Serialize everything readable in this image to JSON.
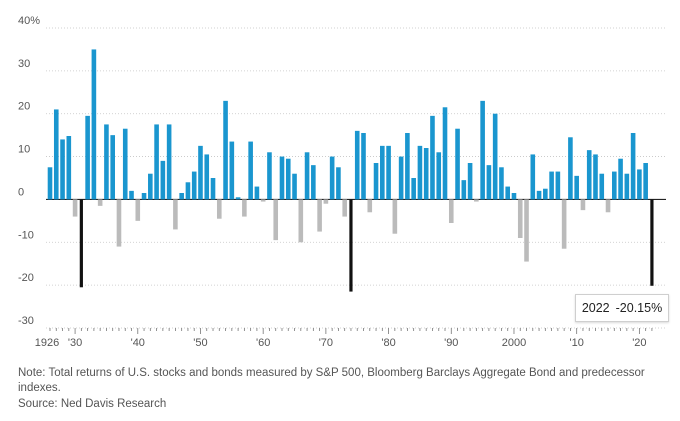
{
  "chart_data": {
    "type": "bar",
    "title": "",
    "xlabel": "",
    "ylabel": "",
    "ylim": [
      -30,
      40
    ],
    "y_ticks": [
      40,
      30,
      20,
      10,
      0,
      -10,
      -20,
      -30
    ],
    "y_tick_labels": [
      "40%",
      "30",
      "20",
      "10",
      "0",
      "-10",
      "-20",
      "-30"
    ],
    "x_ticks": [
      {
        "year": 1926,
        "label": "1926"
      },
      {
        "year": 1930,
        "label": "'30"
      },
      {
        "year": 1940,
        "label": "'40"
      },
      {
        "year": 1950,
        "label": "'50"
      },
      {
        "year": 1960,
        "label": "'60"
      },
      {
        "year": 1970,
        "label": "'70"
      },
      {
        "year": 1980,
        "label": "'80"
      },
      {
        "year": 1990,
        "label": "'90"
      },
      {
        "year": 2000,
        "label": "2000"
      },
      {
        "year": 2010,
        "label": "'10"
      },
      {
        "year": 2020,
        "label": "'20"
      }
    ],
    "categories": [
      1926,
      1927,
      1928,
      1929,
      1930,
      1931,
      1932,
      1933,
      1934,
      1935,
      1936,
      1937,
      1938,
      1939,
      1940,
      1941,
      1942,
      1943,
      1944,
      1945,
      1946,
      1947,
      1948,
      1949,
      1950,
      1951,
      1952,
      1953,
      1954,
      1955,
      1956,
      1957,
      1958,
      1959,
      1960,
      1961,
      1962,
      1963,
      1964,
      1965,
      1966,
      1967,
      1968,
      1969,
      1970,
      1971,
      1972,
      1973,
      1974,
      1975,
      1976,
      1977,
      1978,
      1979,
      1980,
      1981,
      1982,
      1983,
      1984,
      1985,
      1986,
      1987,
      1988,
      1989,
      1990,
      1991,
      1992,
      1993,
      1994,
      1995,
      1996,
      1997,
      1998,
      1999,
      2000,
      2001,
      2002,
      2003,
      2004,
      2005,
      2006,
      2007,
      2008,
      2009,
      2010,
      2011,
      2012,
      2013,
      2014,
      2015,
      2016,
      2017,
      2018,
      2019,
      2020,
      2021,
      2022
    ],
    "values": [
      7.5,
      21,
      14,
      14.8,
      -4,
      -20.5,
      19.5,
      35,
      -1.5,
      17.5,
      15,
      -11,
      16.5,
      2,
      -5,
      1.5,
      6,
      17.5,
      9,
      17.5,
      -7,
      1.5,
      4,
      6.5,
      12.5,
      10.5,
      5,
      -4.5,
      23,
      13.5,
      0.5,
      -4,
      13.5,
      3,
      -0.5,
      11,
      -9.5,
      10,
      9.5,
      6,
      -10,
      11,
      8,
      -7.5,
      -1,
      10,
      7.5,
      -4,
      -21.5,
      16,
      15.5,
      -3,
      8.5,
      12.5,
      12.5,
      -8,
      10,
      15.5,
      5,
      12.5,
      12,
      19.5,
      11,
      21.5,
      -5.5,
      16.5,
      4.5,
      8.5,
      -0.5,
      23,
      8,
      20,
      7.5,
      3,
      1.5,
      -9,
      -14.5,
      10.5,
      2,
      2.5,
      6.5,
      6.5,
      -11.5,
      14.5,
      5.5,
      -2.5,
      11.5,
      10.5,
      6,
      -3,
      6.5,
      9.5,
      6,
      15.5,
      7,
      8.5,
      -20.15
    ],
    "series_colors": {
      "positive": "#1a96cf",
      "negative": "#bbbbbb",
      "highlight": "#111111"
    },
    "highlight_years": [
      1931,
      1974,
      2022
    ],
    "callout": {
      "year": "2022",
      "value": "-20.15%"
    }
  },
  "note": "Note: Total returns of U.S. stocks and bonds measured by S&P 500, Bloomberg Barclays Aggregate Bond and predecessor indexes.",
  "source": "Source: Ned Davis Research"
}
